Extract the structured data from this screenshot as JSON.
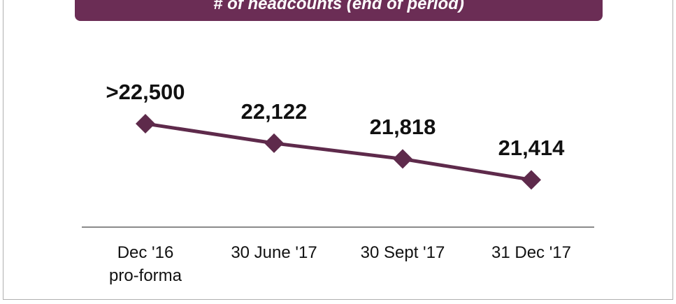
{
  "chart_data": {
    "type": "line",
    "title": "# of headcounts (end of period)",
    "categories": [
      "Dec '16\npro-forma",
      "30 June '17",
      "30 Sept '17",
      "31 Dec '17"
    ],
    "series": [
      {
        "color": "#5e2a4b",
        "values": [
          22500,
          22122,
          21818,
          21414
        ],
        "value_labels": [
          ">22,500",
          "22,122",
          "21,818",
          "21,414"
        ]
      }
    ],
    "ylim": [
      20500,
      24350
    ]
  }
}
